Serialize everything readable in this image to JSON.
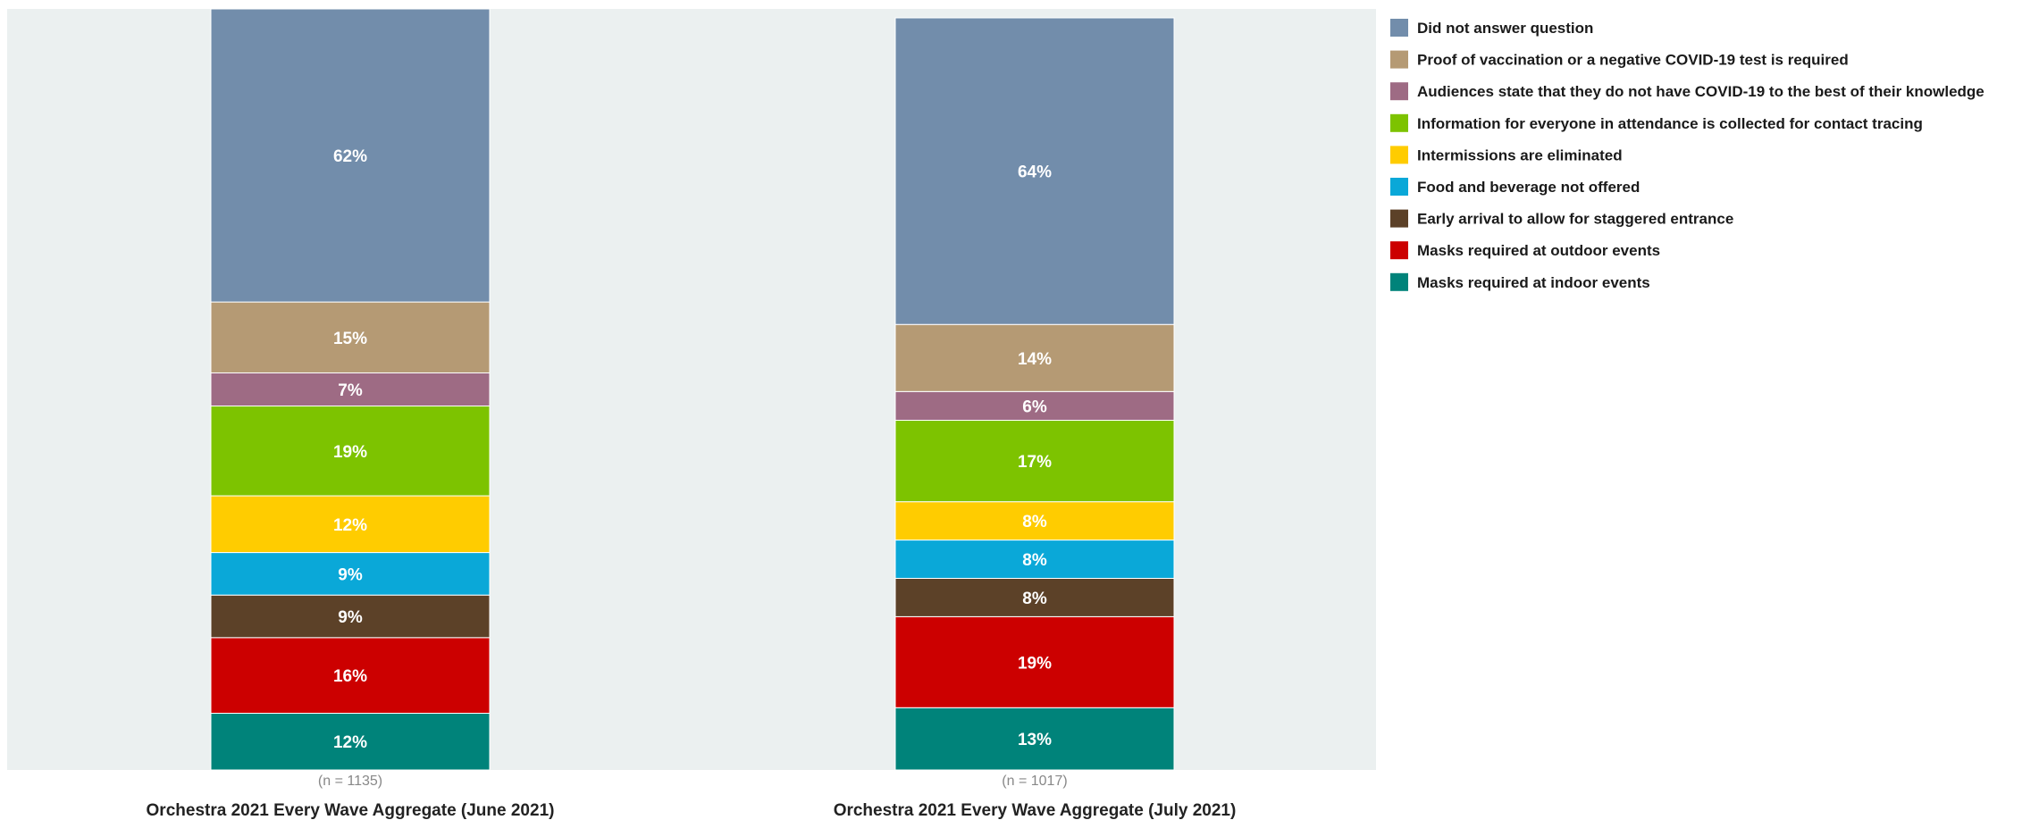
{
  "chart_data": {
    "type": "bar",
    "stacked": true,
    "grid": false,
    "legend_position": "right",
    "categories": [
      "Orchestra 2021 Every Wave Aggregate (June 2021)",
      "Orchestra 2021 Every Wave Aggregate (July 2021)"
    ],
    "n_labels": [
      "(n = 1135)",
      "(n = 1017)"
    ],
    "series": [
      {
        "name": "Masks required at indoor events",
        "color": "#00837a",
        "values": [
          12,
          13
        ],
        "labels": [
          "12%",
          "13%"
        ]
      },
      {
        "name": "Masks required at outdoor events",
        "color": "#cc0000",
        "values": [
          16,
          19
        ],
        "labels": [
          "16%",
          "19%"
        ]
      },
      {
        "name": "Early arrival to allow for staggered entrance",
        "color": "#5c4128",
        "values": [
          9,
          8
        ],
        "labels": [
          "9%",
          "8%"
        ]
      },
      {
        "name": "Food and beverage not offered",
        "color": "#0aa8d8",
        "values": [
          9,
          8
        ],
        "labels": [
          "9%",
          "8%"
        ]
      },
      {
        "name": "Intermissions are eliminated",
        "color": "#ffcc00",
        "values": [
          12,
          8
        ],
        "labels": [
          "12%",
          "8%"
        ]
      },
      {
        "name": "Information for everyone in attendance is collected for contact tracing",
        "color": "#7dc300",
        "values": [
          19,
          17
        ],
        "labels": [
          "19%",
          "17%"
        ]
      },
      {
        "name": "Audiences state that they do not have COVID-19 to the best of their knowledge",
        "color": "#9e6b84",
        "values": [
          7,
          6
        ],
        "labels": [
          "7%",
          "6%"
        ]
      },
      {
        "name": "Proof of vaccination or a negative COVID-19 test is required",
        "color": "#b59a74",
        "values": [
          15,
          14
        ],
        "labels": [
          "15%",
          "14%"
        ]
      },
      {
        "name": "Did not answer question",
        "color": "#728dab",
        "values": [
          62,
          64
        ],
        "labels": [
          "62%",
          "64%"
        ]
      }
    ],
    "legend_order": [
      "Did not answer question",
      "Proof of vaccination or a negative COVID-19 test is required",
      "Audiences state that they do not have COVID-19 to the best of their knowledge",
      "Information for everyone in attendance is collected for contact tracing",
      "Intermissions are eliminated",
      "Food and beverage not offered",
      "Early arrival to allow for staggered entrance",
      "Masks required at outdoor events",
      "Masks required at indoor events"
    ],
    "plot_background": "#ebf0f0"
  }
}
